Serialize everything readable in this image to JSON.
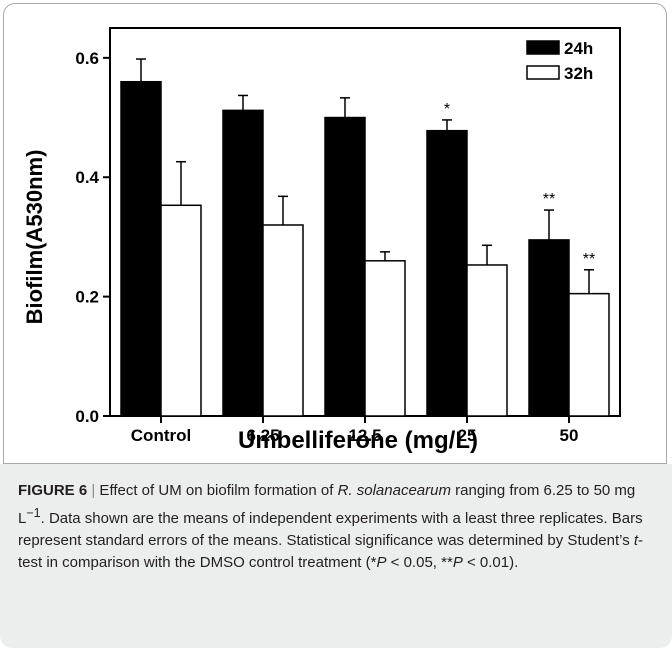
{
  "chart_data": {
    "type": "bar",
    "categories": [
      "Control",
      "6.25",
      "12.5",
      "25",
      "50"
    ],
    "series": [
      {
        "name": "24h",
        "values": [
          0.56,
          0.512,
          0.5,
          0.478,
          0.295
        ],
        "errors": [
          0.038,
          0.025,
          0.033,
          0.018,
          0.05
        ],
        "significance": [
          "",
          "",
          "",
          "*",
          "**"
        ],
        "color": "#000000"
      },
      {
        "name": "32h",
        "values": [
          0.353,
          0.32,
          0.26,
          0.253,
          0.205
        ],
        "errors": [
          0.073,
          0.048,
          0.015,
          0.033,
          0.04
        ],
        "significance": [
          "",
          "",
          "",
          "",
          "**"
        ],
        "color": "#ffffff"
      }
    ],
    "xlabel": "Umbelliferone (mg/L)",
    "ylabel": "Biofilm(A530nm)",
    "ylim": [
      0,
      0.65
    ],
    "yticks": [
      "0.0",
      "0.2",
      "0.4",
      "0.6"
    ],
    "legend_position": "top-right",
    "grid": false
  },
  "caption": {
    "label": "FIGURE 6",
    "separator": "|",
    "text_1": " Effect of UM on biofilm formation of ",
    "organism": "R. solanacearum",
    "text_2": " ranging from 6.25 to 50 mg L",
    "unit_exp": "−1",
    "text_3": ". Data shown are the means of independent experiments with a least three replicates. Bars represent standard errors of the means. Statistical significance was determined by Student’s ",
    "test_name": "t",
    "text_4": "-test in comparison with the DMSO control treatment (*",
    "p1": "P",
    "text_5": " < 0.05, **",
    "p2": "P",
    "text_6": " < 0.01)."
  }
}
